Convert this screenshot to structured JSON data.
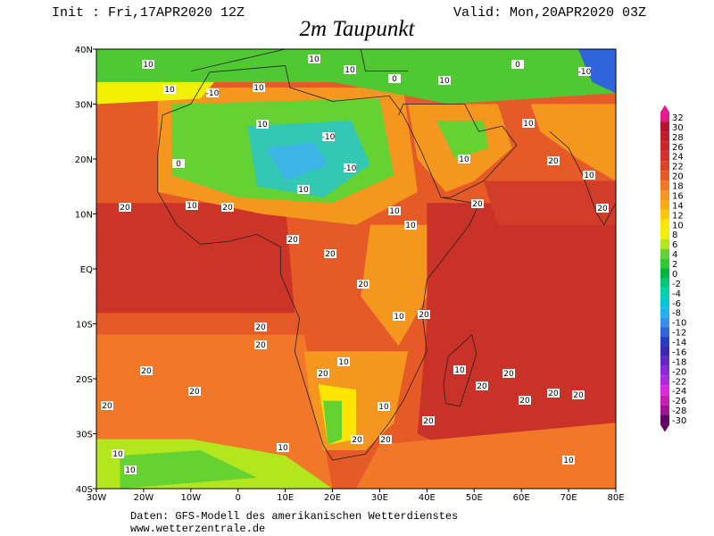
{
  "header": {
    "init": "Init : Fri,17APR2020 12Z",
    "valid": "Valid: Mon,20APR2020 03Z",
    "title": "2m Taupunkt"
  },
  "map": {
    "lat_labels": [
      "40N",
      "30N",
      "20N",
      "10N",
      "EQ",
      "10S",
      "20S",
      "30S",
      "40S"
    ],
    "lon_labels": [
      "30W",
      "20W",
      "10W",
      "0",
      "10E",
      "20E",
      "30E",
      "40E",
      "50E",
      "60E",
      "70E",
      "80E"
    ],
    "contour_labels": [
      10,
      10,
      -10,
      10,
      10,
      10,
      0,
      10,
      0,
      -10,
      10,
      -10,
      -10,
      0,
      10,
      20,
      20,
      10,
      10,
      10,
      20,
      20,
      10,
      20,
      10,
      10,
      20,
      20,
      20,
      10,
      20,
      20,
      20,
      10,
      10,
      20,
      20,
      20,
      20,
      20,
      20,
      10,
      10,
      10,
      10,
      20,
      20,
      10,
      20,
      20,
      20,
      20
    ]
  },
  "colorbar": {
    "levels": [
      32,
      30,
      28,
      26,
      24,
      22,
      20,
      18,
      16,
      14,
      12,
      10,
      8,
      6,
      4,
      2,
      0,
      -2,
      -4,
      -6,
      -8,
      -10,
      -12,
      -14,
      -16,
      -18,
      -20,
      -22,
      -24,
      -26,
      -28,
      -30
    ],
    "colors": [
      "#e8198c",
      "#b4142d",
      "#be1e28",
      "#c8282a",
      "#d2322a",
      "#dc4628",
      "#e65a28",
      "#f07828",
      "#f5961e",
      "#faaa14",
      "#ffc80a",
      "#ffe600",
      "#f0f000",
      "#b4e61e",
      "#64d232",
      "#32c832",
      "#00b43c",
      "#00c878",
      "#00d2aa",
      "#00c8d2",
      "#1eb4f0",
      "#3c8cf0",
      "#3264dc",
      "#283cc8",
      "#3c28b4",
      "#6428c8",
      "#8c28dc",
      "#b428dc",
      "#dc28dc",
      "#c81eb4",
      "#a01496",
      "#640064"
    ]
  },
  "footer": {
    "source": "Daten: GFS-Modell des amerikanischen Wetterdienstes",
    "url": "www.wetterzentrale.de"
  }
}
